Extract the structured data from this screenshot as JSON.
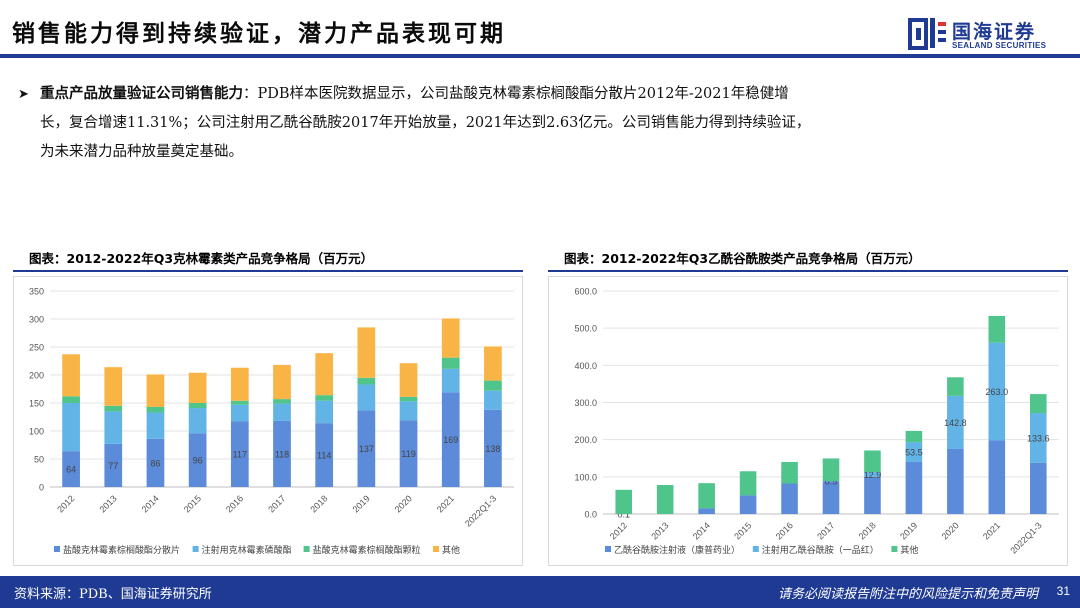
{
  "header": {
    "title": "销售能力得到持续验证，潜力产品表现可期",
    "logo_cn": "国海证券",
    "logo_en": "SEALAND SECURITIES"
  },
  "bullet": {
    "marker": "➤",
    "heading": "重点产品放量验证公司销售能力",
    "line1": "：PDB样本医院数据显示，公司盐酸克林霉素棕榈酸酯分散片2012年-2021年稳健增",
    "line2": "长，复合增速11.31%；公司注射用乙酰谷酰胺2017年开始放量，2021年达到2.63亿元。公司销售能力得到持续验证，",
    "line3": "为未来潜力品种放量奠定基础。"
  },
  "charts": {
    "left_title": "图表：2012-2022年Q3克林霉素类产品竞争格局（百万元）",
    "right_title": "图表：2012-2022年Q3乙酰谷酰胺类产品竞争格局（百万元）"
  },
  "chart_data": [
    {
      "type": "bar",
      "stacked": true,
      "categories": [
        "2012",
        "2013",
        "2014",
        "2015",
        "2016",
        "2017",
        "2018",
        "2019",
        "2020",
        "2021",
        "2022Q1-3"
      ],
      "ylim": [
        0,
        350
      ],
      "yticks": [
        "0",
        "50",
        "100",
        "150",
        "200",
        "250",
        "300",
        "350"
      ],
      "grid": true,
      "legend_position": "bottom",
      "series": [
        {
          "name": "盐酸克林霉素棕榈酸酯分散片",
          "color": "#5b8bd9",
          "values": [
            64,
            77,
            86,
            96,
            117,
            118,
            114,
            137,
            119,
            169,
            138
          ],
          "labels": [
            "64",
            "77",
            "86",
            "96",
            "117",
            "118",
            "114",
            "137",
            "119",
            "169",
            "138"
          ]
        },
        {
          "name": "注射用克林霉素磷酸酯",
          "color": "#63b4e6",
          "values": [
            86,
            58,
            47,
            45,
            30,
            31,
            40,
            46,
            34,
            42,
            34
          ]
        },
        {
          "name": "盐酸克林霉素棕榈酸酯颗粒",
          "color": "#4fc58c",
          "values": [
            12,
            10,
            10,
            9,
            7,
            8,
            10,
            12,
            8,
            20,
            18
          ]
        },
        {
          "name": "其他",
          "color": "#f9b446",
          "values": [
            75,
            69,
            58,
            54,
            59,
            61,
            75,
            90,
            60,
            70,
            61
          ]
        }
      ]
    },
    {
      "type": "bar",
      "stacked": true,
      "categories": [
        "2012",
        "2013",
        "2014",
        "2015",
        "2016",
        "2017",
        "2018",
        "2019",
        "2020",
        "2021",
        "2022Q1-3"
      ],
      "ylim": [
        0,
        600
      ],
      "yticks": [
        "0.0",
        "100.0",
        "200.0",
        "300.0",
        "400.0",
        "500.0",
        "600.0"
      ],
      "grid": true,
      "legend_position": "bottom",
      "series": [
        {
          "name": "乙酰谷酰胺注射液（康普药业）",
          "color": "#5b8bd9",
          "values": [
            0,
            0,
            15,
            50,
            82,
            88,
            100,
            140,
            175,
            198,
            138
          ]
        },
        {
          "name": "注射用乙酰谷酰胺（一品红）",
          "color": "#63b4e6",
          "values": [
            0.1,
            0.0,
            0,
            0,
            0,
            0.5,
            12.9,
            53.5,
            142.8,
            263.0,
            133.6
          ],
          "labels": [
            "0.1",
            "0.0",
            "",
            "",
            "",
            "0.5",
            "12.9",
            "53.5",
            "142.8",
            "263.0",
            "133.6"
          ]
        },
        {
          "name": "其他",
          "color": "#4fc58c",
          "values": [
            65,
            78,
            68,
            65,
            58,
            61,
            58,
            30,
            50,
            72,
            51
          ]
        }
      ]
    }
  ],
  "footer": {
    "source": "资料来源：PDB、国海证券研究所",
    "disclaimer": "请务必阅读报告附注中的风险提示和免责声明",
    "page": "31"
  },
  "colors": {
    "brand": "#1f3a93"
  }
}
